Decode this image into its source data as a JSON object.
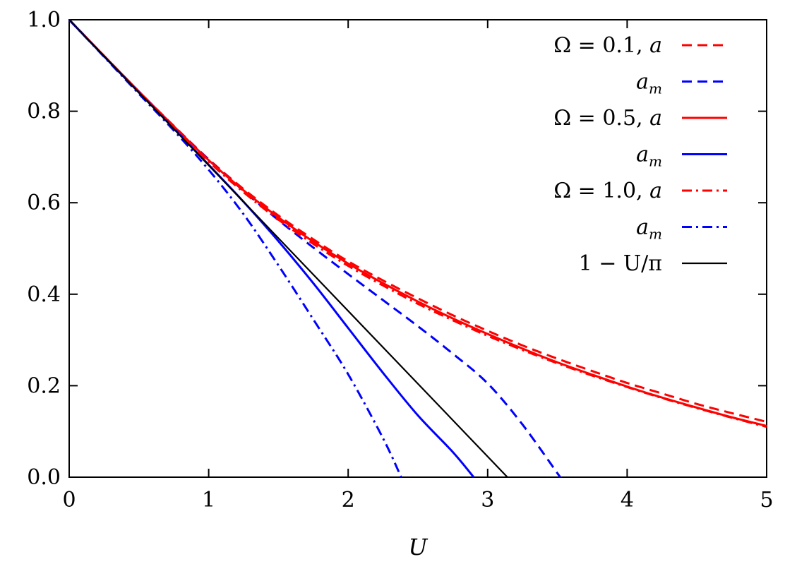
{
  "chart_data": {
    "type": "line",
    "title": "",
    "xlabel": "U",
    "ylabel": "",
    "xlim": [
      0,
      5
    ],
    "ylim": [
      0,
      1
    ],
    "x_ticks": [
      "0",
      "1",
      "2",
      "3",
      "4",
      "5"
    ],
    "y_ticks": [
      "0.0",
      "0.2",
      "0.4",
      "0.6",
      "0.8",
      "1.0"
    ],
    "grid": false,
    "legend_position": "top-right",
    "series": [
      {
        "name": "Ω = 0.1, a",
        "color": "#ff0000",
        "style": "dashed",
        "x": [
          0,
          0.25,
          0.5,
          0.75,
          1.0,
          1.25,
          1.5,
          1.75,
          2.0,
          2.25,
          2.5,
          2.75,
          3.0,
          3.25,
          3.5,
          3.75,
          4.0,
          4.25,
          4.5,
          4.75,
          5.0
        ],
        "y": [
          1.0,
          0.921,
          0.843,
          0.768,
          0.695,
          0.63,
          0.572,
          0.52,
          0.472,
          0.43,
          0.391,
          0.354,
          0.32,
          0.288,
          0.259,
          0.232,
          0.206,
          0.183,
          0.16,
          0.14,
          0.121
        ]
      },
      {
        "name": "a_m",
        "color": "#0000ff",
        "style": "dashed",
        "x": [
          0,
          0.25,
          0.5,
          0.75,
          1.0,
          1.25,
          1.5,
          1.75,
          2.0,
          2.25,
          2.5,
          2.75,
          3.0,
          3.25,
          3.52
        ],
        "y": [
          1.0,
          0.921,
          0.843,
          0.767,
          0.694,
          0.626,
          0.562,
          0.502,
          0.444,
          0.387,
          0.33,
          0.27,
          0.205,
          0.115,
          0.0
        ]
      },
      {
        "name": "Ω = 0.5, a",
        "color": "#ff0000",
        "style": "solid",
        "x": [
          0,
          0.25,
          0.5,
          0.75,
          1.0,
          1.25,
          1.5,
          1.75,
          2.0,
          2.25,
          2.5,
          2.75,
          3.0,
          3.25,
          3.5,
          3.75,
          4.0,
          4.25,
          4.5,
          4.75,
          5.0
        ],
        "y": [
          1.0,
          0.921,
          0.843,
          0.767,
          0.693,
          0.627,
          0.568,
          0.515,
          0.467,
          0.424,
          0.384,
          0.347,
          0.313,
          0.281,
          0.251,
          0.224,
          0.198,
          0.174,
          0.152,
          0.131,
          0.112
        ]
      },
      {
        "name": "a_m",
        "color": "#0000ff",
        "style": "solid",
        "x": [
          0,
          0.25,
          0.5,
          0.75,
          1.0,
          1.25,
          1.5,
          1.75,
          2.0,
          2.25,
          2.5,
          2.75,
          2.9
        ],
        "y": [
          1.0,
          0.92,
          0.841,
          0.763,
          0.683,
          0.602,
          0.516,
          0.424,
          0.326,
          0.228,
          0.135,
          0.055,
          0.0
        ]
      },
      {
        "name": "Ω = 1.0, a",
        "color": "#ff0000",
        "style": "dashdot",
        "x": [
          0,
          0.25,
          0.5,
          0.75,
          1.0,
          1.25,
          1.5,
          1.75,
          2.0,
          2.25,
          2.5,
          2.75,
          3.0,
          3.25,
          3.5,
          3.75,
          4.0,
          4.25,
          4.5,
          4.75,
          5.0
        ],
        "y": [
          1.0,
          0.921,
          0.843,
          0.766,
          0.69,
          0.623,
          0.563,
          0.51,
          0.462,
          0.419,
          0.379,
          0.343,
          0.309,
          0.278,
          0.249,
          0.222,
          0.197,
          0.173,
          0.151,
          0.13,
          0.11
        ]
      },
      {
        "name": "a_m",
        "color": "#0000ff",
        "style": "dashdot",
        "x": [
          0,
          0.25,
          0.5,
          0.75,
          1.0,
          1.25,
          1.5,
          1.75,
          2.0,
          2.25,
          2.38
        ],
        "y": [
          1.0,
          0.919,
          0.838,
          0.758,
          0.672,
          0.575,
          0.463,
          0.345,
          0.225,
          0.085,
          0.0
        ]
      },
      {
        "name": "1 − U/π",
        "color": "#000000",
        "style": "solid",
        "x": [
          0,
          3.1416
        ],
        "y": [
          1.0,
          0.0
        ]
      }
    ]
  }
}
